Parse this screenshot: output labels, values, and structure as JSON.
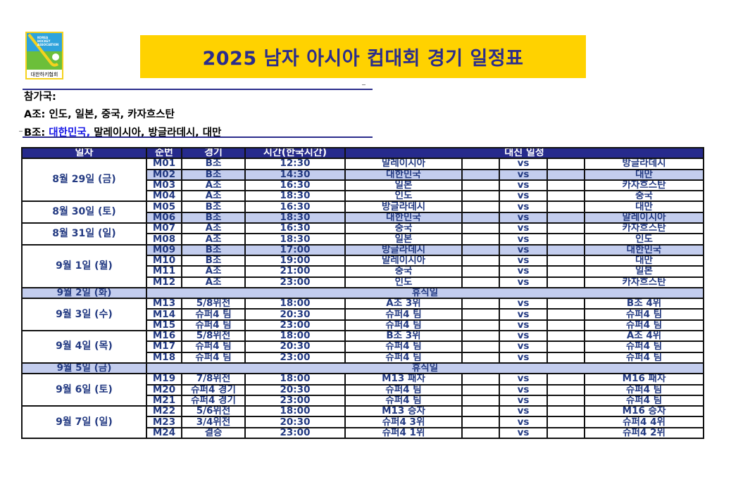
{
  "logo": {
    "text": "KOREA HOCKEY ASSOCIATION",
    "label": "대한하키협회"
  },
  "title": "2025 남자 아시아 컵대회 경기 일정표",
  "participants": {
    "heading": "참가국:",
    "group_a_label": "A조:",
    "group_a_teams": "인도, 일본, 중국, 카자흐스탄",
    "group_b_label": "B조:",
    "group_b_highlight": "대한민국,",
    "group_b_rest": "말레이시아, 방글라데시, 대만"
  },
  "colors": {
    "header_bg": "#262a8c",
    "highlight_row": "#c3cdee",
    "title_bg": "#ffd200",
    "text": "#233a82"
  },
  "table": {
    "headers": [
      "일자",
      "순번",
      "경기",
      "시간(한국시간)",
      "대진 일정"
    ],
    "vs_label": "vs",
    "rest_label": "휴식일",
    "days": [
      {
        "date": "8월 29일 (금)",
        "matches": [
          {
            "no": "M01",
            "game": "B조",
            "time": "12:30",
            "home": "말레이시아",
            "away": "방글라데시",
            "highlight": false
          },
          {
            "no": "M02",
            "game": "B조",
            "time": "14:30",
            "home": "대한민국",
            "away": "대만",
            "highlight": true
          },
          {
            "no": "M03",
            "game": "A조",
            "time": "16:30",
            "home": "일본",
            "away": "카자흐스탄",
            "highlight": false
          },
          {
            "no": "M04",
            "game": "A조",
            "time": "18:30",
            "home": "인도",
            "away": "중국",
            "highlight": false
          }
        ]
      },
      {
        "date": "8월 30일 (토)",
        "matches": [
          {
            "no": "M05",
            "game": "B조",
            "time": "16:30",
            "home": "방글라데시",
            "away": "대만",
            "highlight": false
          },
          {
            "no": "M06",
            "game": "B조",
            "time": "18:30",
            "home": "대한민국",
            "away": "말레이시아",
            "highlight": true
          }
        ]
      },
      {
        "date": "8월 31일 (일)",
        "matches": [
          {
            "no": "M07",
            "game": "A조",
            "time": "16:30",
            "home": "중국",
            "away": "카자흐스탄",
            "highlight": false
          },
          {
            "no": "M08",
            "game": "A조",
            "time": "18:30",
            "home": "일본",
            "away": "인도",
            "highlight": false
          }
        ]
      },
      {
        "date": "9월 1일 (월)",
        "matches": [
          {
            "no": "M09",
            "game": "B조",
            "time": "17:00",
            "home": "방글라데시",
            "away": "대한민국",
            "highlight": true
          },
          {
            "no": "M10",
            "game": "B조",
            "time": "19:00",
            "home": "말레이시아",
            "away": "대만",
            "highlight": false
          },
          {
            "no": "M11",
            "game": "A조",
            "time": "21:00",
            "home": "중국",
            "away": "일본",
            "highlight": false
          },
          {
            "no": "M12",
            "game": "A조",
            "time": "23:00",
            "home": "인도",
            "away": "카자흐스탄",
            "highlight": false
          }
        ]
      },
      {
        "date": "9월 2일 (화)",
        "rest": true
      },
      {
        "date": "9월 3일 (수)",
        "matches": [
          {
            "no": "M13",
            "game": "5/8위전",
            "time": "18:00",
            "home": "A조 3위",
            "away": "B조 4위",
            "highlight": false
          },
          {
            "no": "M14",
            "game": "슈퍼4 팀",
            "time": "20:30",
            "home": "슈퍼4 팀",
            "away": "슈퍼4 팀",
            "highlight": false
          },
          {
            "no": "M15",
            "game": "슈퍼4 팀",
            "time": "23:00",
            "home": "슈퍼4 팀",
            "away": "슈퍼4 팀",
            "highlight": false
          }
        ]
      },
      {
        "date": "9월 4일 (목)",
        "matches": [
          {
            "no": "M16",
            "game": "5/8위전",
            "time": "18:00",
            "home": "B조 3위",
            "away": "A조 4위",
            "highlight": false
          },
          {
            "no": "M17",
            "game": "슈퍼4 팀",
            "time": "20:30",
            "home": "슈퍼4 팀",
            "away": "슈퍼4 팀",
            "highlight": false
          },
          {
            "no": "M18",
            "game": "슈퍼4 팀",
            "time": "23:00",
            "home": "슈퍼4 팀",
            "away": "슈퍼4 팀",
            "highlight": false
          }
        ]
      },
      {
        "date": "9월 5일 (금)",
        "rest": true
      },
      {
        "date": "9월 6일 (토)",
        "matches": [
          {
            "no": "M19",
            "game": "7/8위전",
            "time": "18:00",
            "home": "M13 패자",
            "away": "M16 패자",
            "highlight": false
          },
          {
            "no": "M20",
            "game": "슈퍼4 경기",
            "time": "20:30",
            "home": "슈퍼4 팀",
            "away": "슈퍼4 팀",
            "highlight": false
          },
          {
            "no": "M21",
            "game": "슈퍼4 경기",
            "time": "23:00",
            "home": "슈퍼4 팀",
            "away": "슈퍼4 팀",
            "highlight": false
          }
        ]
      },
      {
        "date": "9월 7일 (일)",
        "matches": [
          {
            "no": "M22",
            "game": "5/6위전",
            "time": "18:00",
            "home": "M13 승자",
            "away": "M16 승자",
            "highlight": false
          },
          {
            "no": "M23",
            "game": "3/4위전",
            "time": "20:30",
            "home": "슈퍼4 3위",
            "away": "슈퍼4 4위",
            "highlight": false
          },
          {
            "no": "M24",
            "game": "결승",
            "time": "23:00",
            "home": "슈퍼4 1위",
            "away": "슈퍼4 2위",
            "highlight": false
          }
        ]
      }
    ]
  }
}
